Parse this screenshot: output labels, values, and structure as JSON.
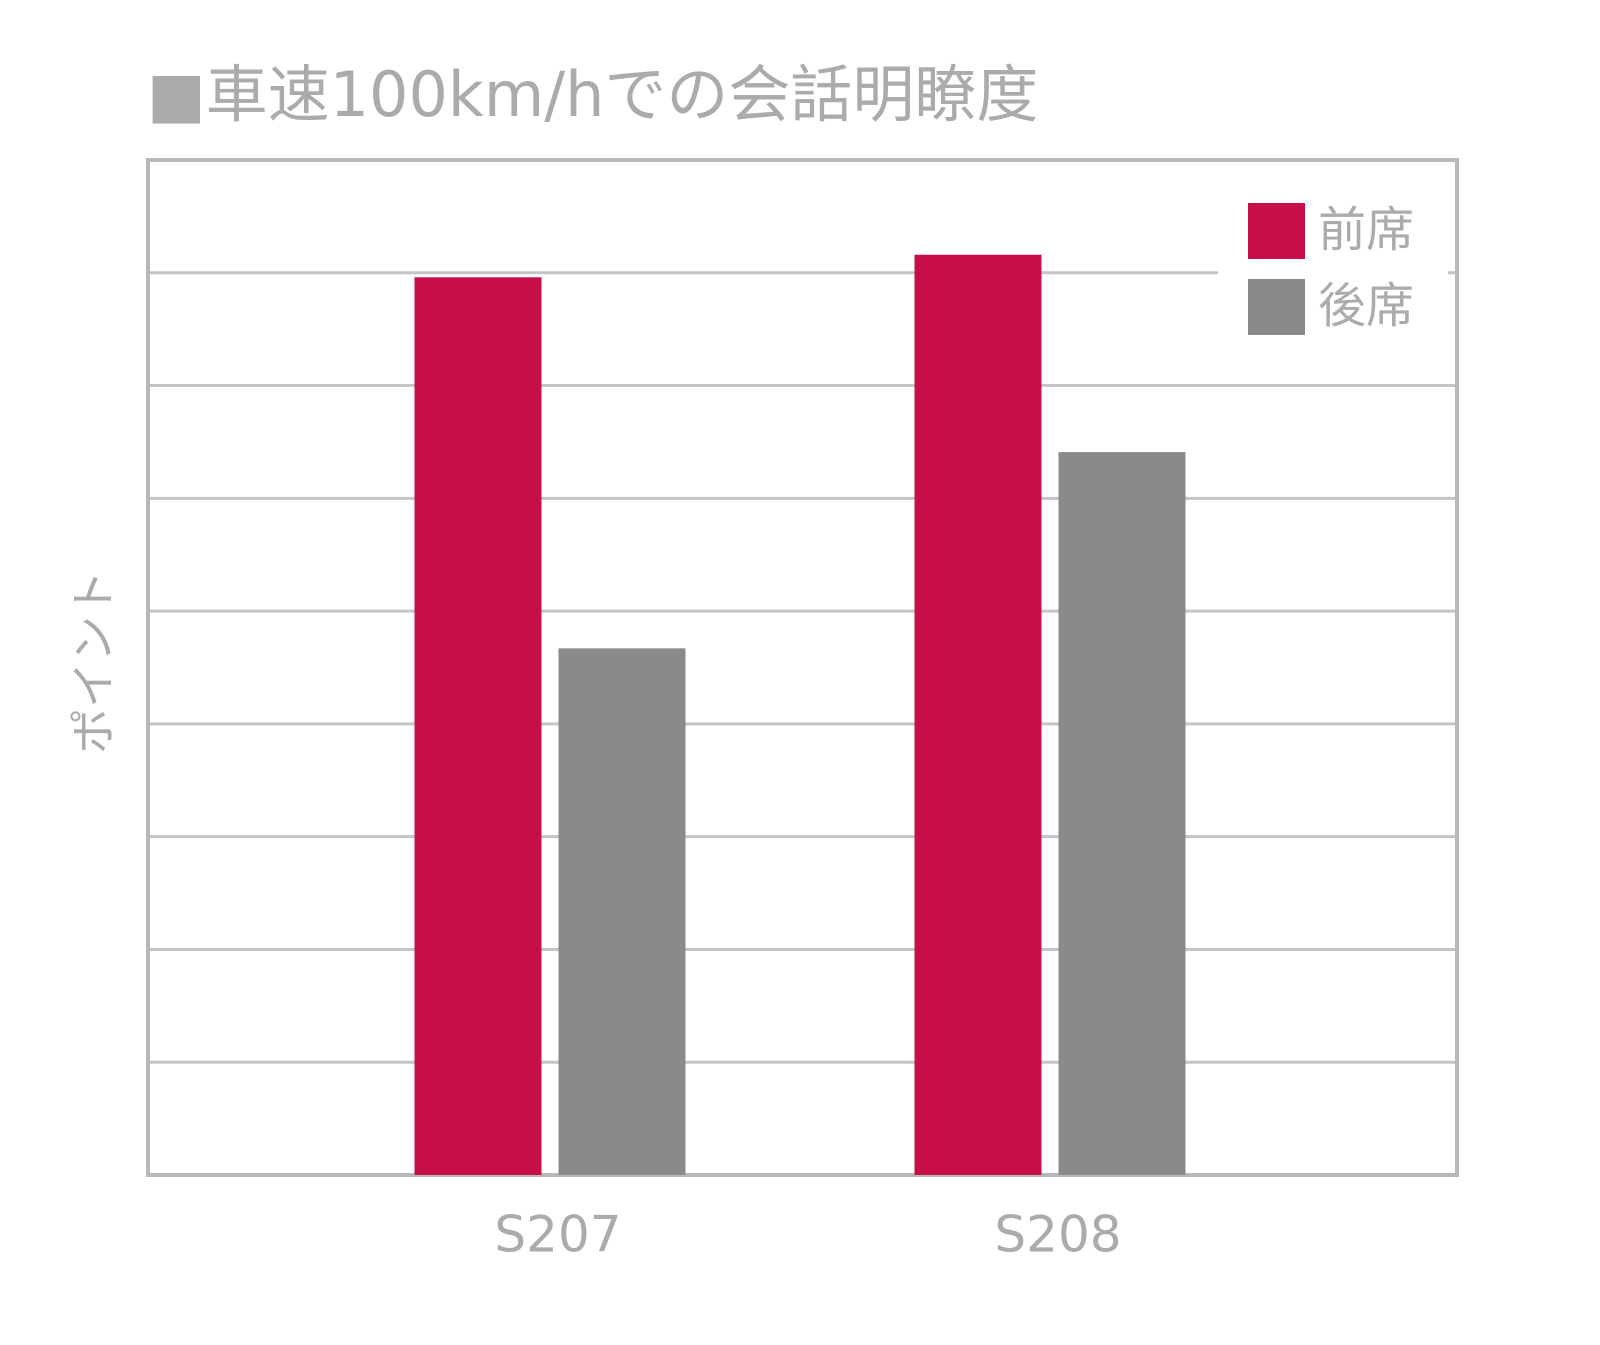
{
  "chart_data": {
    "type": "bar",
    "title": "■車速100km/hでの会話明瞭度",
    "y_label": "ポイント",
    "categories": [
      "S207",
      "S208"
    ],
    "series": [
      {
        "name": "前席",
        "color": "#c80e48",
        "values": [
          7.96,
          8.16
        ]
      },
      {
        "name": "後席",
        "color": "#8a8a8a",
        "values": [
          4.67,
          6.41
        ]
      }
    ],
    "ylim": [
      0,
      9
    ],
    "yticks": [
      0,
      1,
      2,
      3,
      4,
      5,
      6,
      7,
      8,
      9
    ],
    "grid": true,
    "legend": "top-right"
  }
}
